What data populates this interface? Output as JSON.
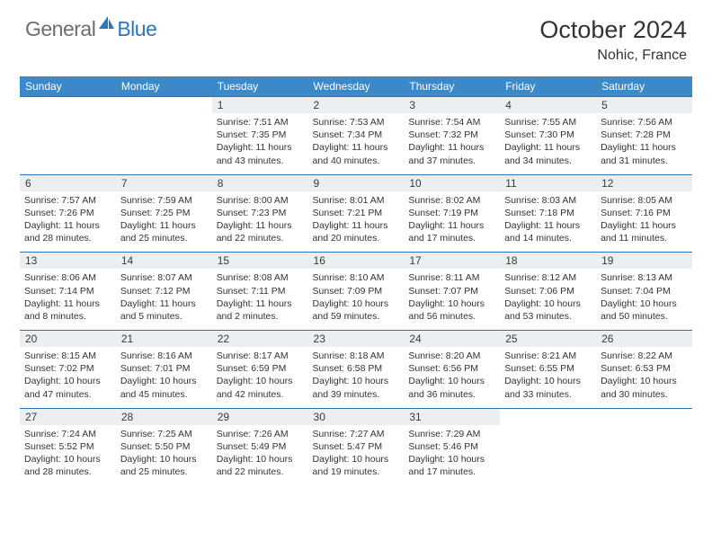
{
  "brand": {
    "part1": "General",
    "part2": "Blue"
  },
  "title": "October 2024",
  "location": "Nohic, France",
  "colors": {
    "header_bg": "#3b89c9",
    "border": "#2e75c0",
    "daynum_bg": "#eceff1",
    "text": "#333333",
    "logo_gray": "#6d6d6d",
    "logo_blue": "#2e75c0",
    "white": "#ffffff"
  },
  "days_of_week": [
    "Sunday",
    "Monday",
    "Tuesday",
    "Wednesday",
    "Thursday",
    "Friday",
    "Saturday"
  ],
  "weeks": [
    [
      {
        "n": "",
        "sr": "",
        "ss": "",
        "dl": ""
      },
      {
        "n": "",
        "sr": "",
        "ss": "",
        "dl": ""
      },
      {
        "n": "1",
        "sr": "Sunrise: 7:51 AM",
        "ss": "Sunset: 7:35 PM",
        "dl": "Daylight: 11 hours and 43 minutes."
      },
      {
        "n": "2",
        "sr": "Sunrise: 7:53 AM",
        "ss": "Sunset: 7:34 PM",
        "dl": "Daylight: 11 hours and 40 minutes."
      },
      {
        "n": "3",
        "sr": "Sunrise: 7:54 AM",
        "ss": "Sunset: 7:32 PM",
        "dl": "Daylight: 11 hours and 37 minutes."
      },
      {
        "n": "4",
        "sr": "Sunrise: 7:55 AM",
        "ss": "Sunset: 7:30 PM",
        "dl": "Daylight: 11 hours and 34 minutes."
      },
      {
        "n": "5",
        "sr": "Sunrise: 7:56 AM",
        "ss": "Sunset: 7:28 PM",
        "dl": "Daylight: 11 hours and 31 minutes."
      }
    ],
    [
      {
        "n": "6",
        "sr": "Sunrise: 7:57 AM",
        "ss": "Sunset: 7:26 PM",
        "dl": "Daylight: 11 hours and 28 minutes."
      },
      {
        "n": "7",
        "sr": "Sunrise: 7:59 AM",
        "ss": "Sunset: 7:25 PM",
        "dl": "Daylight: 11 hours and 25 minutes."
      },
      {
        "n": "8",
        "sr": "Sunrise: 8:00 AM",
        "ss": "Sunset: 7:23 PM",
        "dl": "Daylight: 11 hours and 22 minutes."
      },
      {
        "n": "9",
        "sr": "Sunrise: 8:01 AM",
        "ss": "Sunset: 7:21 PM",
        "dl": "Daylight: 11 hours and 20 minutes."
      },
      {
        "n": "10",
        "sr": "Sunrise: 8:02 AM",
        "ss": "Sunset: 7:19 PM",
        "dl": "Daylight: 11 hours and 17 minutes."
      },
      {
        "n": "11",
        "sr": "Sunrise: 8:03 AM",
        "ss": "Sunset: 7:18 PM",
        "dl": "Daylight: 11 hours and 14 minutes."
      },
      {
        "n": "12",
        "sr": "Sunrise: 8:05 AM",
        "ss": "Sunset: 7:16 PM",
        "dl": "Daylight: 11 hours and 11 minutes."
      }
    ],
    [
      {
        "n": "13",
        "sr": "Sunrise: 8:06 AM",
        "ss": "Sunset: 7:14 PM",
        "dl": "Daylight: 11 hours and 8 minutes."
      },
      {
        "n": "14",
        "sr": "Sunrise: 8:07 AM",
        "ss": "Sunset: 7:12 PM",
        "dl": "Daylight: 11 hours and 5 minutes."
      },
      {
        "n": "15",
        "sr": "Sunrise: 8:08 AM",
        "ss": "Sunset: 7:11 PM",
        "dl": "Daylight: 11 hours and 2 minutes."
      },
      {
        "n": "16",
        "sr": "Sunrise: 8:10 AM",
        "ss": "Sunset: 7:09 PM",
        "dl": "Daylight: 10 hours and 59 minutes."
      },
      {
        "n": "17",
        "sr": "Sunrise: 8:11 AM",
        "ss": "Sunset: 7:07 PM",
        "dl": "Daylight: 10 hours and 56 minutes."
      },
      {
        "n": "18",
        "sr": "Sunrise: 8:12 AM",
        "ss": "Sunset: 7:06 PM",
        "dl": "Daylight: 10 hours and 53 minutes."
      },
      {
        "n": "19",
        "sr": "Sunrise: 8:13 AM",
        "ss": "Sunset: 7:04 PM",
        "dl": "Daylight: 10 hours and 50 minutes."
      }
    ],
    [
      {
        "n": "20",
        "sr": "Sunrise: 8:15 AM",
        "ss": "Sunset: 7:02 PM",
        "dl": "Daylight: 10 hours and 47 minutes."
      },
      {
        "n": "21",
        "sr": "Sunrise: 8:16 AM",
        "ss": "Sunset: 7:01 PM",
        "dl": "Daylight: 10 hours and 45 minutes."
      },
      {
        "n": "22",
        "sr": "Sunrise: 8:17 AM",
        "ss": "Sunset: 6:59 PM",
        "dl": "Daylight: 10 hours and 42 minutes."
      },
      {
        "n": "23",
        "sr": "Sunrise: 8:18 AM",
        "ss": "Sunset: 6:58 PM",
        "dl": "Daylight: 10 hours and 39 minutes."
      },
      {
        "n": "24",
        "sr": "Sunrise: 8:20 AM",
        "ss": "Sunset: 6:56 PM",
        "dl": "Daylight: 10 hours and 36 minutes."
      },
      {
        "n": "25",
        "sr": "Sunrise: 8:21 AM",
        "ss": "Sunset: 6:55 PM",
        "dl": "Daylight: 10 hours and 33 minutes."
      },
      {
        "n": "26",
        "sr": "Sunrise: 8:22 AM",
        "ss": "Sunset: 6:53 PM",
        "dl": "Daylight: 10 hours and 30 minutes."
      }
    ],
    [
      {
        "n": "27",
        "sr": "Sunrise: 7:24 AM",
        "ss": "Sunset: 5:52 PM",
        "dl": "Daylight: 10 hours and 28 minutes."
      },
      {
        "n": "28",
        "sr": "Sunrise: 7:25 AM",
        "ss": "Sunset: 5:50 PM",
        "dl": "Daylight: 10 hours and 25 minutes."
      },
      {
        "n": "29",
        "sr": "Sunrise: 7:26 AM",
        "ss": "Sunset: 5:49 PM",
        "dl": "Daylight: 10 hours and 22 minutes."
      },
      {
        "n": "30",
        "sr": "Sunrise: 7:27 AM",
        "ss": "Sunset: 5:47 PM",
        "dl": "Daylight: 10 hours and 19 minutes."
      },
      {
        "n": "31",
        "sr": "Sunrise: 7:29 AM",
        "ss": "Sunset: 5:46 PM",
        "dl": "Daylight: 10 hours and 17 minutes."
      },
      {
        "n": "",
        "sr": "",
        "ss": "",
        "dl": ""
      },
      {
        "n": "",
        "sr": "",
        "ss": "",
        "dl": ""
      }
    ]
  ]
}
